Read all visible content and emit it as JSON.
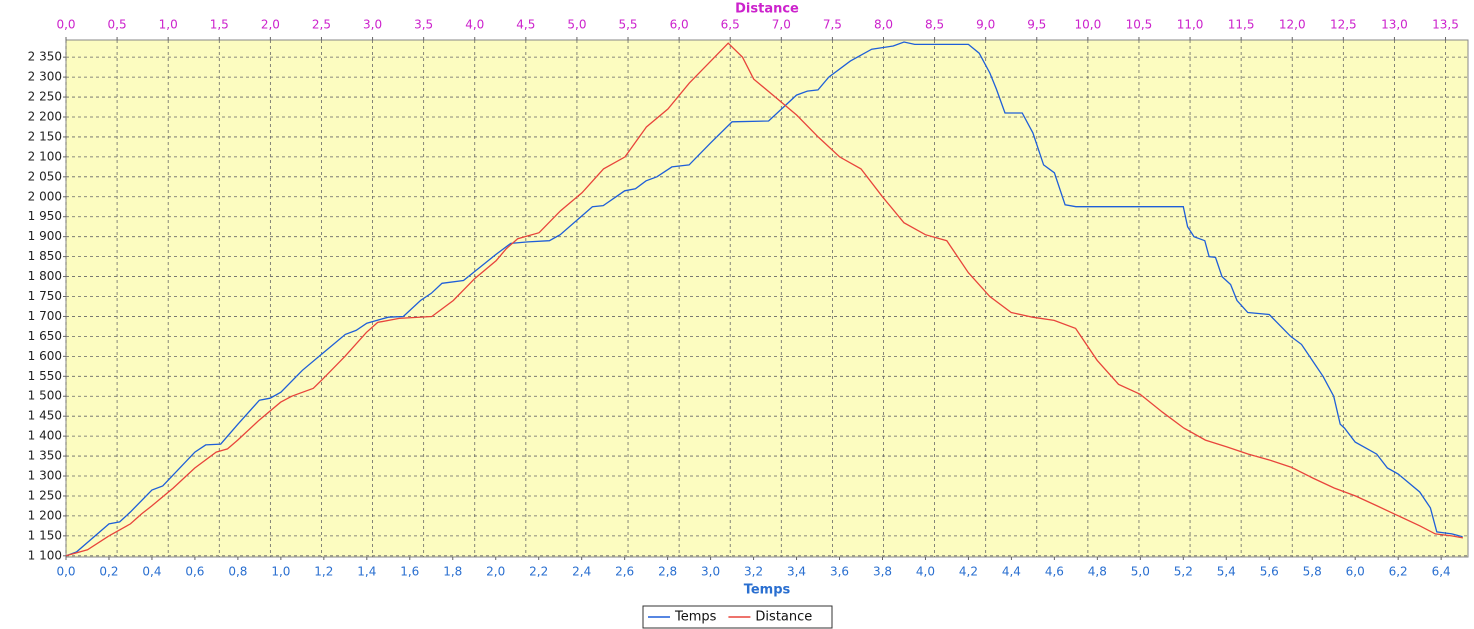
{
  "chart_data": {
    "type": "line",
    "xlabel": "Temps",
    "x2label": "Distance",
    "xlim": [
      0,
      6.525
    ],
    "xticks": [
      {
        "value": 0,
        "label": "0,0"
      },
      {
        "value": 0.2,
        "label": "0,2"
      },
      {
        "value": 0.4,
        "label": "0,4"
      },
      {
        "value": 0.6,
        "label": "0,6"
      },
      {
        "value": 0.8,
        "label": "0,8"
      },
      {
        "value": 1,
        "label": "1,0"
      },
      {
        "value": 1.2,
        "label": "1,2"
      },
      {
        "value": 1.4,
        "label": "1,4"
      },
      {
        "value": 1.6,
        "label": "1,6"
      },
      {
        "value": 1.8,
        "label": "1,8"
      },
      {
        "value": 2,
        "label": "2,0"
      },
      {
        "value": 2.2,
        "label": "2,2"
      },
      {
        "value": 2.4,
        "label": "2,4"
      },
      {
        "value": 2.6,
        "label": "2,6"
      },
      {
        "value": 2.8,
        "label": "2,8"
      },
      {
        "value": 3,
        "label": "3,0"
      },
      {
        "value": 3.2,
        "label": "3,2"
      },
      {
        "value": 3.4,
        "label": "3,4"
      },
      {
        "value": 3.6,
        "label": "3,6"
      },
      {
        "value": 3.8,
        "label": "3,8"
      },
      {
        "value": 4,
        "label": "4,0"
      },
      {
        "value": 4.2,
        "label": "4,2"
      },
      {
        "value": 4.4,
        "label": "4,4"
      },
      {
        "value": 4.6,
        "label": "4,6"
      },
      {
        "value": 4.8,
        "label": "4,8"
      },
      {
        "value": 5,
        "label": "5,0"
      },
      {
        "value": 5.2,
        "label": "5,2"
      },
      {
        "value": 5.4,
        "label": "5,4"
      },
      {
        "value": 5.6,
        "label": "5,6"
      },
      {
        "value": 5.8,
        "label": "5,8"
      },
      {
        "value": 6,
        "label": "6,0"
      },
      {
        "value": 6.2,
        "label": "6,2"
      },
      {
        "value": 6.4,
        "label": "6,4"
      }
    ],
    "x2lim": [
      0,
      13.72
    ],
    "x2ticks": [
      {
        "value": 0,
        "label": "0,0"
      },
      {
        "value": 0.5,
        "label": "0,5"
      },
      {
        "value": 1,
        "label": "1,0"
      },
      {
        "value": 1.5,
        "label": "1,5"
      },
      {
        "value": 2,
        "label": "2,0"
      },
      {
        "value": 2.5,
        "label": "2,5"
      },
      {
        "value": 3,
        "label": "3,0"
      },
      {
        "value": 3.5,
        "label": "3,5"
      },
      {
        "value": 4,
        "label": "4,0"
      },
      {
        "value": 4.5,
        "label": "4,5"
      },
      {
        "value": 5,
        "label": "5,0"
      },
      {
        "value": 5.5,
        "label": "5,5"
      },
      {
        "value": 6,
        "label": "6,0"
      },
      {
        "value": 6.5,
        "label": "6,5"
      },
      {
        "value": 7,
        "label": "7,0"
      },
      {
        "value": 7.5,
        "label": "7,5"
      },
      {
        "value": 8,
        "label": "8,0"
      },
      {
        "value": 8.5,
        "label": "8,5"
      },
      {
        "value": 9,
        "label": "9,0"
      },
      {
        "value": 9.5,
        "label": "9,5"
      },
      {
        "value": 10,
        "label": "10,0"
      },
      {
        "value": 10.5,
        "label": "10,5"
      },
      {
        "value": 11,
        "label": "11,0"
      },
      {
        "value": 11.5,
        "label": "11,5"
      },
      {
        "value": 12,
        "label": "12,0"
      },
      {
        "value": 12.5,
        "label": "12,5"
      },
      {
        "value": 13,
        "label": "13,0"
      },
      {
        "value": 13.5,
        "label": "13,5"
      }
    ],
    "ylim": [
      1097,
      2393
    ],
    "yticks": [
      {
        "value": 1100,
        "label": "1 100"
      },
      {
        "value": 1150,
        "label": "1 150"
      },
      {
        "value": 1200,
        "label": "1 200"
      },
      {
        "value": 1250,
        "label": "1 250"
      },
      {
        "value": 1300,
        "label": "1 300"
      },
      {
        "value": 1350,
        "label": "1 350"
      },
      {
        "value": 1400,
        "label": "1 400"
      },
      {
        "value": 1450,
        "label": "1 450"
      },
      {
        "value": 1500,
        "label": "1 500"
      },
      {
        "value": 1550,
        "label": "1 550"
      },
      {
        "value": 1600,
        "label": "1 600"
      },
      {
        "value": 1650,
        "label": "1 650"
      },
      {
        "value": 1700,
        "label": "1 700"
      },
      {
        "value": 1750,
        "label": "1 750"
      },
      {
        "value": 1800,
        "label": "1 800"
      },
      {
        "value": 1850,
        "label": "1 850"
      },
      {
        "value": 1900,
        "label": "1 900"
      },
      {
        "value": 1950,
        "label": "1 950"
      },
      {
        "value": 2000,
        "label": "2 000"
      },
      {
        "value": 2050,
        "label": "2 050"
      },
      {
        "value": 2100,
        "label": "2 100"
      },
      {
        "value": 2150,
        "label": "2 150"
      },
      {
        "value": 2200,
        "label": "2 200"
      },
      {
        "value": 2250,
        "label": "2 250"
      },
      {
        "value": 2300,
        "label": "2 300"
      },
      {
        "value": 2350,
        "label": "2 350"
      }
    ],
    "grid": true,
    "series": [
      {
        "name": "Temps",
        "color": "#1f5fd8",
        "x": [
          0,
          0.05,
          0.2,
          0.25,
          0.3,
          0.4,
          0.45,
          0.6,
          0.65,
          0.72,
          0.8,
          0.9,
          0.95,
          1.0,
          1.1,
          1.2,
          1.3,
          1.35,
          1.4,
          1.5,
          1.57,
          1.65,
          1.7,
          1.75,
          1.85,
          2.0,
          2.07,
          2.15,
          2.25,
          2.3,
          2.45,
          2.5,
          2.6,
          2.65,
          2.7,
          2.75,
          2.82,
          2.9,
          3.0,
          3.1,
          3.27,
          3.4,
          3.45,
          3.5,
          3.55,
          3.65,
          3.75,
          3.85,
          3.9,
          3.95,
          4.2,
          4.25,
          4.3,
          4.33,
          4.37,
          4.45,
          4.5,
          4.55,
          4.6,
          4.65,
          4.7,
          5.0,
          5.2,
          5.22,
          5.25,
          5.3,
          5.32,
          5.35,
          5.38,
          5.42,
          5.45,
          5.5,
          5.6,
          5.7,
          5.75,
          5.8,
          5.85,
          5.9,
          5.93,
          5.95,
          6.0,
          6.1,
          6.15,
          6.2,
          6.3,
          6.35,
          6.38,
          6.45,
          6.5
        ],
        "values": [
          1100,
          1110,
          1180,
          1185,
          1210,
          1265,
          1275,
          1360,
          1378,
          1380,
          1430,
          1490,
          1495,
          1510,
          1565,
          1610,
          1655,
          1665,
          1683,
          1698,
          1700,
          1740,
          1758,
          1783,
          1790,
          1855,
          1883,
          1887,
          1890,
          1905,
          1975,
          1978,
          2015,
          2020,
          2040,
          2050,
          2075,
          2080,
          2135,
          2188,
          2190,
          2255,
          2265,
          2268,
          2300,
          2340,
          2370,
          2378,
          2388,
          2382,
          2382,
          2360,
          2310,
          2270,
          2210,
          2210,
          2160,
          2080,
          2060,
          1980,
          1975,
          1975,
          1975,
          1925,
          1900,
          1890,
          1850,
          1848,
          1800,
          1780,
          1740,
          1710,
          1705,
          1650,
          1630,
          1590,
          1550,
          1500,
          1430,
          1420,
          1385,
          1355,
          1320,
          1305,
          1260,
          1220,
          1160,
          1155,
          1148
        ]
      },
      {
        "name": "Distance",
        "color": "#e8453c",
        "axis": "x2",
        "x": [
          0,
          0.21,
          0.42,
          0.63,
          0.74,
          0.84,
          1.05,
          1.26,
          1.47,
          1.58,
          1.68,
          1.89,
          2.1,
          2.21,
          2.42,
          2.52,
          2.73,
          2.94,
          3.05,
          3.26,
          3.58,
          3.79,
          4.0,
          4.21,
          4.31,
          4.42,
          4.63,
          4.84,
          5.05,
          5.26,
          5.47,
          5.68,
          5.89,
          6.1,
          6.31,
          6.48,
          6.62,
          6.73,
          6.94,
          7.15,
          7.36,
          7.57,
          7.78,
          7.99,
          8.2,
          8.41,
          8.62,
          8.83,
          9.04,
          9.25,
          9.46,
          9.67,
          9.88,
          10.09,
          10.3,
          10.51,
          10.73,
          10.94,
          11.15,
          11.36,
          11.57,
          11.78,
          11.99,
          12.2,
          12.41,
          12.62,
          12.83,
          13.04,
          13.25,
          13.4,
          13.56,
          13.67
        ],
        "values": [
          1100,
          1115,
          1150,
          1180,
          1205,
          1225,
          1270,
          1320,
          1360,
          1368,
          1390,
          1440,
          1485,
          1500,
          1520,
          1545,
          1600,
          1660,
          1685,
          1695,
          1700,
          1740,
          1795,
          1840,
          1870,
          1895,
          1910,
          1965,
          2010,
          2070,
          2100,
          2175,
          2220,
          2285,
          2340,
          2385,
          2350,
          2295,
          2250,
          2205,
          2150,
          2100,
          2070,
          2000,
          1935,
          1905,
          1890,
          1810,
          1750,
          1710,
          1698,
          1690,
          1670,
          1590,
          1530,
          1505,
          1460,
          1420,
          1390,
          1373,
          1355,
          1340,
          1322,
          1295,
          1270,
          1250,
          1225,
          1200,
          1175,
          1155,
          1150,
          1145
        ]
      }
    ]
  }
}
